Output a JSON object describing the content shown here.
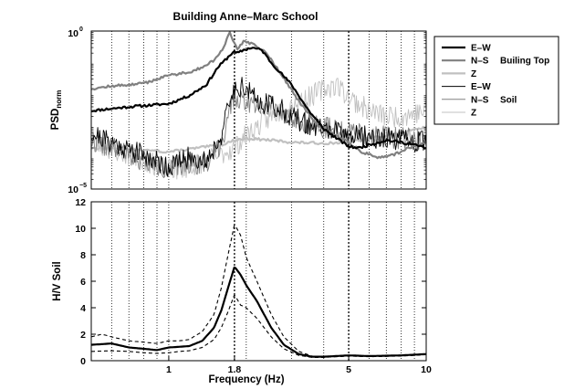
{
  "figure": {
    "title": "Building Anne–Marc School"
  },
  "colors": {
    "dark": "#000000",
    "mid": "#808080",
    "light": "#c0c0c0",
    "frame": "#000000"
  },
  "chart_data": [
    {
      "type": "line",
      "name": "psd",
      "yscale": "log",
      "xscale": "log",
      "xlim": [
        0.5,
        10
      ],
      "ylim": [
        1e-05,
        1
      ],
      "ylabel": "PSD",
      "ylabel_sub": "norm",
      "yticks": [
        {
          "v": 1,
          "base": "10",
          "exp": "0"
        },
        {
          "v": 1e-05,
          "base": "10",
          "exp": "−5"
        }
      ],
      "vlines": [
        1.8,
        5
      ],
      "xgrid_minor": [
        0.6,
        0.7,
        0.8,
        0.9,
        2,
        3,
        4,
        6,
        7,
        8,
        9
      ],
      "legend": {
        "entries": [
          {
            "label": "E–W",
            "color": "#000000",
            "width": 2.2
          },
          {
            "label": "N–S",
            "color": "#808080",
            "width": 2.2
          },
          {
            "label": "Z",
            "color": "#c0c0c0",
            "width": 2.2
          },
          {
            "label": "E–W",
            "color": "#000000",
            "width": 1
          },
          {
            "label": "N–S",
            "color": "#808080",
            "width": 1
          },
          {
            "label": "Z",
            "color": "#c0c0c0",
            "width": 1
          }
        ],
        "group1": "Builing Top",
        "group2": "Soil"
      },
      "series": [
        {
          "key": "top_ew",
          "color": "#000000",
          "width": 2.2,
          "noise": 0.0,
          "seed": 11,
          "x": [
            0.5,
            0.7,
            1.0,
            1.2,
            1.4,
            1.55,
            1.7,
            1.78,
            1.85,
            1.95,
            2.1,
            2.3,
            2.5,
            3.0,
            3.5,
            4.0,
            4.5,
            5.0,
            5.5,
            6.0,
            7.0,
            8.0,
            9.0,
            10.0
          ],
          "y": [
            0.003,
            0.004,
            0.005,
            0.009,
            0.02,
            0.07,
            0.15,
            0.22,
            0.2,
            0.25,
            0.3,
            0.25,
            0.1,
            0.02,
            0.003,
            0.0008,
            0.0004,
            0.00022,
            0.0002,
            0.00025,
            0.00035,
            0.0003,
            0.00025,
            0.0002
          ]
        },
        {
          "key": "top_ns",
          "color": "#808080",
          "width": 2.2,
          "noise": 0.0,
          "seed": 12,
          "x": [
            0.5,
            0.6,
            0.8,
            1.0,
            1.2,
            1.4,
            1.55,
            1.65,
            1.72,
            1.78,
            1.85,
            1.95,
            2.1,
            2.4,
            2.7,
            3.2,
            3.8,
            4.5,
            5.0,
            5.6,
            6.5,
            7.5,
            8.5,
            10.0
          ],
          "y": [
            0.015,
            0.018,
            0.022,
            0.04,
            0.05,
            0.08,
            0.15,
            0.35,
            1.0,
            0.5,
            0.28,
            0.45,
            0.4,
            0.2,
            0.05,
            0.006,
            0.001,
            0.0005,
            0.0003,
            0.00015,
            0.0001,
            0.00012,
            0.0002,
            0.0003
          ]
        },
        {
          "key": "top_z",
          "color": "#c0c0c0",
          "width": 2.2,
          "noise": 0.0,
          "seed": 13,
          "x": [
            0.5,
            0.7,
            1.0,
            1.3,
            1.6,
            1.8,
            2.0,
            2.5,
            3.0,
            4.0,
            5.0,
            6.0,
            7.0,
            8.0,
            10.0
          ],
          "y": [
            0.0002,
            0.00018,
            0.00015,
            0.0002,
            0.00025,
            0.00035,
            0.0004,
            0.00035,
            0.0003,
            0.00028,
            0.0003,
            0.0004,
            0.0005,
            0.0006,
            0.0009
          ]
        },
        {
          "key": "soil_ew",
          "color": "#000000",
          "width": 0.9,
          "noise": 0.35,
          "seed": 21,
          "x": [
            0.5,
            0.6,
            0.8,
            1.0,
            1.2,
            1.4,
            1.6,
            1.75,
            1.85,
            2.0,
            2.2,
            2.5,
            3.0,
            3.5,
            4.0,
            5.0,
            6.0,
            7.0,
            8.0,
            10.0
          ],
          "y": [
            0.0006,
            0.0003,
            0.00012,
            5e-05,
            0.0001,
            8e-05,
            0.0005,
            0.008,
            0.02,
            0.015,
            0.006,
            0.005,
            0.002,
            0.001,
            0.0008,
            0.0005,
            0.00045,
            0.0004,
            0.00035,
            0.0003
          ]
        },
        {
          "key": "soil_ns",
          "color": "#808080",
          "width": 0.9,
          "noise": 0.35,
          "seed": 22,
          "x": [
            0.5,
            0.6,
            0.8,
            1.0,
            1.2,
            1.4,
            1.6,
            1.75,
            1.85,
            2.0,
            2.3,
            2.6,
            3.0,
            3.5,
            4.0,
            5.0,
            6.0,
            7.0,
            8.0,
            10.0
          ],
          "y": [
            0.00035,
            0.0002,
            8e-05,
            4e-05,
            7e-05,
            6e-05,
            0.0003,
            0.004,
            0.008,
            0.006,
            0.005,
            0.004,
            0.002,
            0.0012,
            0.0009,
            0.0006,
            0.0005,
            0.00045,
            0.0004,
            0.00035
          ]
        },
        {
          "key": "soil_z",
          "color": "#c0c0c0",
          "width": 0.9,
          "noise": 0.35,
          "seed": 23,
          "x": [
            0.5,
            0.6,
            0.8,
            1.0,
            1.2,
            1.5,
            1.8,
            2.0,
            2.5,
            3.0,
            3.5,
            4.0,
            4.5,
            5.0,
            6.0,
            7.0,
            8.0,
            10.0
          ],
          "y": [
            0.0003,
            0.00018,
            8e-05,
            4e-05,
            5e-05,
            0.0001,
            0.0002,
            0.0005,
            0.002,
            0.005,
            0.008,
            0.015,
            0.02,
            0.008,
            0.003,
            0.002,
            0.002,
            0.003
          ]
        }
      ]
    },
    {
      "type": "line",
      "name": "hv",
      "xscale": "log",
      "xlim": [
        0.5,
        10
      ],
      "ylim": [
        0,
        12
      ],
      "ylabel": "H/V Soil",
      "xlabel": "Frequency (Hz)",
      "yticks": [
        0,
        2,
        4,
        6,
        8,
        10,
        12
      ],
      "xticks": [
        {
          "v": 1,
          "label": "1"
        },
        {
          "v": 1.8,
          "label": "1.8"
        },
        {
          "v": 5,
          "label": "5"
        },
        {
          "v": 10,
          "label": "10"
        }
      ],
      "vlines": [
        1.8,
        5
      ],
      "xgrid_minor": [
        0.6,
        0.7,
        0.8,
        0.9,
        2,
        3,
        4,
        6,
        7,
        8,
        9
      ],
      "series": [
        {
          "key": "hv_mean",
          "color": "#000000",
          "width": 2.2,
          "dash": "",
          "x": [
            0.5,
            0.6,
            0.7,
            0.8,
            0.9,
            1.0,
            1.1,
            1.2,
            1.35,
            1.5,
            1.6,
            1.7,
            1.8,
            1.9,
            2.0,
            2.2,
            2.5,
            2.8,
            3.2,
            3.6,
            4.0,
            5.0,
            6.0,
            8.0,
            10.0
          ],
          "y": [
            1.2,
            1.3,
            1.0,
            0.9,
            0.8,
            1.0,
            1.05,
            1.1,
            1.5,
            2.5,
            3.8,
            5.5,
            7.1,
            6.5,
            5.7,
            4.5,
            2.5,
            1.2,
            0.5,
            0.3,
            0.3,
            0.4,
            0.35,
            0.4,
            0.5
          ]
        },
        {
          "key": "hv_plus",
          "color": "#000000",
          "width": 1.1,
          "dash": "4,3",
          "x": [
            0.5,
            0.55,
            0.6,
            0.7,
            0.8,
            0.9,
            1.0,
            1.1,
            1.2,
            1.35,
            1.5,
            1.6,
            1.7,
            1.8,
            1.9,
            2.0,
            2.2,
            2.5,
            2.8,
            3.2,
            3.6,
            4.0,
            5.0,
            6.0,
            8.0,
            10.0
          ],
          "y": [
            1.8,
            2.0,
            1.8,
            1.5,
            1.4,
            1.3,
            1.5,
            1.5,
            1.6,
            2.2,
            3.5,
            5.5,
            8.0,
            10.3,
            9.5,
            7.8,
            6.0,
            3.5,
            1.8,
            0.7,
            0.35,
            0.3,
            0.4,
            0.35,
            0.4,
            0.5
          ]
        },
        {
          "key": "hv_minus",
          "color": "#000000",
          "width": 1.1,
          "dash": "4,3",
          "x": [
            0.5,
            0.6,
            0.7,
            0.8,
            0.9,
            1.0,
            1.1,
            1.2,
            1.35,
            1.5,
            1.6,
            1.7,
            1.8,
            1.9,
            2.0,
            2.2,
            2.5,
            2.8,
            3.2,
            3.6,
            4.0,
            5.0,
            6.0,
            8.0,
            10.0
          ],
          "y": [
            0.7,
            0.75,
            0.7,
            0.6,
            0.55,
            0.6,
            0.7,
            0.75,
            1.0,
            1.6,
            2.5,
            3.7,
            5.0,
            4.2,
            4.0,
            3.2,
            1.8,
            0.9,
            0.4,
            0.25,
            0.25,
            0.35,
            0.3,
            0.35,
            0.45
          ]
        }
      ]
    }
  ]
}
